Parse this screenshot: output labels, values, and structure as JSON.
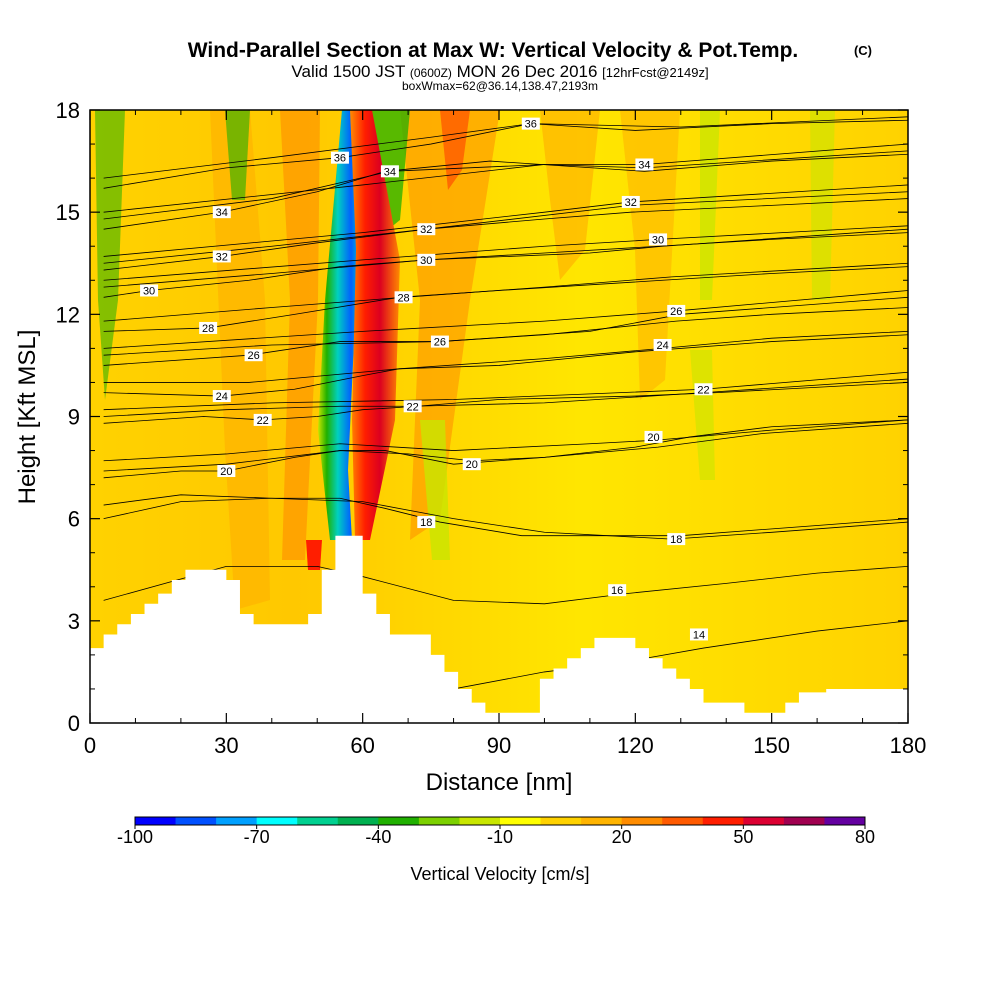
{
  "header": {
    "title": "Wind-Parallel Section at Max W: Vertical Velocity & Pot.Temp.",
    "copyright": "(C)",
    "subtitle_prefix": "Valid 1500 JST",
    "subtitle_utc": "(0600Z)",
    "subtitle_date": "MON 26 Dec 2016",
    "subtitle_fcst": "[12hrFcst@2149z]",
    "box_info": "boxWmax=62@36.14,138.47,2193m"
  },
  "chart_data": {
    "type": "heatmap",
    "title": "Wind-Parallel Section at Max W: Vertical Velocity & Pot.Temp.",
    "xlabel": "Distance [nm]",
    "ylabel": "Height [Kft MSL]",
    "xlim": [
      0,
      180
    ],
    "ylim": [
      0,
      18
    ],
    "x_ticks": [
      "0",
      "30",
      "60",
      "90",
      "120",
      "150",
      "180"
    ],
    "y_ticks": [
      "0",
      "3",
      "6",
      "9",
      "12",
      "15",
      "18"
    ],
    "colorbar": {
      "label": "Vertical Velocity [cm/s]",
      "tick_labels": [
        "-100",
        "-70",
        "-40",
        "-10",
        "20",
        "50",
        "80"
      ],
      "colors": [
        "#0000ff",
        "#0050ff",
        "#00a0ff",
        "#00ffff",
        "#00d090",
        "#00b050",
        "#20b000",
        "#7cd000",
        "#c8e600",
        "#ffff00",
        "#ffd200",
        "#ffb400",
        "#ff8c00",
        "#ff5a00",
        "#ff1e00",
        "#dc0032",
        "#a00050",
        "#6400a0"
      ]
    },
    "terrain_kft": [
      [
        0,
        2.2
      ],
      [
        3,
        2.6
      ],
      [
        6,
        2.9
      ],
      [
        9,
        3.2
      ],
      [
        12,
        3.5
      ],
      [
        15,
        3.8
      ],
      [
        18,
        4.2
      ],
      [
        21,
        4.5
      ],
      [
        27,
        4.5
      ],
      [
        30,
        4.2
      ],
      [
        33,
        3.2
      ],
      [
        36,
        2.9
      ],
      [
        45,
        2.9
      ],
      [
        48,
        3.2
      ],
      [
        51,
        4.5
      ],
      [
        54,
        5.5
      ],
      [
        57,
        5.5
      ],
      [
        60,
        3.8
      ],
      [
        63,
        3.2
      ],
      [
        66,
        2.6
      ],
      [
        72,
        2.6
      ],
      [
        75,
        2.0
      ],
      [
        78,
        1.5
      ],
      [
        81,
        1.0
      ],
      [
        84,
        0.6
      ],
      [
        87,
        0.3
      ],
      [
        90,
        0.3
      ],
      [
        96,
        0.3
      ],
      [
        99,
        1.3
      ],
      [
        102,
        1.6
      ],
      [
        105,
        1.9
      ],
      [
        108,
        2.2
      ],
      [
        111,
        2.5
      ],
      [
        117,
        2.5
      ],
      [
        120,
        2.2
      ],
      [
        123,
        1.9
      ],
      [
        126,
        1.6
      ],
      [
        129,
        1.3
      ],
      [
        132,
        1.0
      ],
      [
        135,
        0.6
      ],
      [
        138,
        0.6
      ],
      [
        141,
        0.6
      ],
      [
        144,
        0.3
      ],
      [
        150,
        0.3
      ],
      [
        153,
        0.6
      ],
      [
        156,
        0.9
      ],
      [
        162,
        1.0
      ],
      [
        180,
        1.0
      ]
    ],
    "theta_contours": [
      {
        "label": "14",
        "pts": [
          [
            3,
            1.6
          ],
          [
            30,
            1.9
          ],
          [
            50,
            1.8
          ],
          [
            60,
            1.5
          ],
          [
            80,
            1.0
          ],
          [
            100,
            1.5
          ],
          [
            118,
            1.8
          ],
          [
            135,
            2.2
          ],
          [
            160,
            2.7
          ],
          [
            180,
            3.0
          ]
        ],
        "label_at": [
          134,
          2.6
        ]
      },
      {
        "label": "16",
        "pts": [
          [
            3,
            3.6
          ],
          [
            30,
            4.6
          ],
          [
            50,
            4.6
          ],
          [
            60,
            4.3
          ],
          [
            80,
            3.6
          ],
          [
            100,
            3.5
          ],
          [
            118,
            3.8
          ],
          [
            140,
            4.1
          ],
          [
            160,
            4.4
          ],
          [
            180,
            4.6
          ]
        ],
        "label_at": [
          116,
          3.9
        ]
      },
      {
        "label": "18",
        "pts": [
          [
            3,
            6.0
          ],
          [
            20,
            6.5
          ],
          [
            40,
            6.6
          ],
          [
            55,
            6.6
          ],
          [
            65,
            6.3
          ],
          [
            77,
            5.9
          ],
          [
            95,
            5.5
          ],
          [
            115,
            5.5
          ],
          [
            130,
            5.5
          ],
          [
            160,
            5.8
          ],
          [
            180,
            6.0
          ]
        ],
        "label_at": [
          74,
          5.9
        ]
      },
      {
        "label": "18",
        "pts": [
          [
            3,
            6.4
          ],
          [
            20,
            6.7
          ],
          [
            40,
            6.6
          ],
          [
            60,
            6.5
          ],
          [
            80,
            6.0
          ],
          [
            100,
            5.6
          ],
          [
            128,
            5.4
          ],
          [
            150,
            5.6
          ],
          [
            180,
            5.9
          ]
        ],
        "label_at": [
          129,
          5.4
        ]
      },
      {
        "label": "20",
        "pts": [
          [
            3,
            7.2
          ],
          [
            20,
            7.4
          ],
          [
            30,
            7.4
          ],
          [
            45,
            7.8
          ],
          [
            55,
            8.0
          ],
          [
            65,
            8.0
          ],
          [
            80,
            7.6
          ],
          [
            100,
            7.8
          ],
          [
            120,
            8.1
          ],
          [
            132,
            8.4
          ],
          [
            150,
            8.7
          ],
          [
            180,
            8.9
          ]
        ],
        "label_at": [
          30,
          7.4
        ]
      },
      {
        "label": "20",
        "pts": [
          [
            3,
            7.4
          ],
          [
            30,
            7.6
          ],
          [
            55,
            8.0
          ],
          [
            70,
            7.9
          ],
          [
            84,
            7.7
          ],
          [
            100,
            7.8
          ],
          [
            125,
            8.1
          ],
          [
            148,
            8.5
          ],
          [
            180,
            8.8
          ]
        ],
        "label_at": [
          84,
          7.6
        ]
      },
      {
        "label": "20",
        "pts": [
          [
            3,
            7.7
          ],
          [
            30,
            7.9
          ],
          [
            55,
            8.2
          ],
          [
            80,
            8.0
          ],
          [
            110,
            8.2
          ],
          [
            124,
            8.3
          ],
          [
            150,
            8.6
          ],
          [
            180,
            8.9
          ]
        ],
        "label_at": [
          124,
          8.4
        ]
      },
      {
        "label": "22",
        "pts": [
          [
            3,
            8.8
          ],
          [
            25,
            9.0
          ],
          [
            38,
            8.9
          ],
          [
            50,
            9.0
          ],
          [
            60,
            9.2
          ],
          [
            72,
            9.3
          ],
          [
            90,
            9.5
          ],
          [
            120,
            9.6
          ],
          [
            138,
            9.7
          ],
          [
            180,
            10.0
          ]
        ],
        "label_at": [
          38,
          8.9
        ]
      },
      {
        "label": "22",
        "pts": [
          [
            3,
            9.0
          ],
          [
            30,
            9.2
          ],
          [
            55,
            9.3
          ],
          [
            71,
            9.3
          ],
          [
            100,
            9.4
          ],
          [
            135,
            9.7
          ],
          [
            180,
            10.1
          ]
        ],
        "label_at": [
          71,
          9.3
        ]
      },
      {
        "label": "22",
        "pts": [
          [
            3,
            9.2
          ],
          [
            40,
            9.4
          ],
          [
            80,
            9.5
          ],
          [
            135,
            9.8
          ],
          [
            180,
            10.3
          ]
        ],
        "label_at": [
          135,
          9.8
        ]
      },
      {
        "label": "24",
        "pts": [
          [
            3,
            9.7
          ],
          [
            29,
            9.6
          ],
          [
            45,
            9.8
          ],
          [
            60,
            10.2
          ],
          [
            68,
            10.4
          ],
          [
            90,
            10.5
          ],
          [
            120,
            10.9
          ],
          [
            150,
            11.2
          ],
          [
            180,
            11.4
          ]
        ],
        "label_at": [
          29,
          9.6
        ]
      },
      {
        "label": "24",
        "pts": [
          [
            3,
            10.0
          ],
          [
            35,
            10.0
          ],
          [
            68,
            10.4
          ],
          [
            100,
            10.7
          ],
          [
            126,
            11.0
          ],
          [
            150,
            11.3
          ],
          [
            180,
            11.5
          ]
        ],
        "label_at": [
          126,
          11.1
        ]
      },
      {
        "label": "26",
        "pts": [
          [
            3,
            10.5
          ],
          [
            35,
            10.8
          ],
          [
            55,
            11.2
          ],
          [
            77,
            11.2
          ],
          [
            100,
            11.4
          ],
          [
            129,
            11.8
          ],
          [
            150,
            12.0
          ],
          [
            180,
            12.2
          ]
        ],
        "label_at": [
          36,
          10.8
        ]
      },
      {
        "label": "26",
        "pts": [
          [
            3,
            10.8
          ],
          [
            40,
            11.1
          ],
          [
            77,
            11.2
          ],
          [
            110,
            11.5
          ],
          [
            130,
            12.0
          ],
          [
            180,
            12.5
          ]
        ],
        "label_at": [
          77,
          11.2
        ]
      },
      {
        "label": "26",
        "pts": [
          [
            3,
            11.0
          ],
          [
            60,
            11.5
          ],
          [
            100,
            11.8
          ],
          [
            129,
            12.1
          ],
          [
            180,
            12.7
          ]
        ],
        "label_at": [
          129,
          12.1
        ]
      },
      {
        "label": "28",
        "pts": [
          [
            3,
            11.5
          ],
          [
            26,
            11.6
          ],
          [
            45,
            12.0
          ],
          [
            68,
            12.5
          ],
          [
            90,
            12.7
          ],
          [
            126,
            13.0
          ],
          [
            150,
            13.2
          ],
          [
            180,
            13.4
          ]
        ],
        "label_at": [
          26,
          11.6
        ]
      },
      {
        "label": "28",
        "pts": [
          [
            3,
            11.8
          ],
          [
            40,
            12.2
          ],
          [
            69,
            12.5
          ],
          [
            100,
            12.8
          ],
          [
            128,
            13.1
          ],
          [
            180,
            13.5
          ]
        ],
        "label_at": [
          69,
          12.5
        ]
      },
      {
        "label": "30",
        "pts": [
          [
            3,
            12.5
          ],
          [
            13,
            12.7
          ],
          [
            35,
            13.0
          ],
          [
            55,
            13.4
          ],
          [
            74,
            13.6
          ],
          [
            100,
            13.8
          ],
          [
            125,
            14.0
          ],
          [
            150,
            14.2
          ],
          [
            180,
            14.4
          ]
        ],
        "label_at": [
          13,
          12.7
        ]
      },
      {
        "label": "30",
        "pts": [
          [
            3,
            12.8
          ],
          [
            40,
            13.2
          ],
          [
            74,
            13.6
          ],
          [
            110,
            13.8
          ],
          [
            126,
            14.0
          ],
          [
            180,
            14.5
          ]
        ],
        "label_at": [
          74,
          13.6
        ]
      },
      {
        "label": "30",
        "pts": [
          [
            3,
            13.0
          ],
          [
            60,
            13.6
          ],
          [
            100,
            14.0
          ],
          [
            125,
            14.2
          ],
          [
            180,
            14.6
          ]
        ],
        "label_at": [
          125,
          14.2
        ]
      },
      {
        "label": "32",
        "pts": [
          [
            3,
            13.3
          ],
          [
            29,
            13.7
          ],
          [
            50,
            14.1
          ],
          [
            74,
            14.5
          ],
          [
            100,
            14.8
          ],
          [
            119,
            15.0
          ],
          [
            150,
            15.2
          ],
          [
            180,
            15.4
          ]
        ],
        "label_at": [
          29,
          13.7
        ]
      },
      {
        "label": "32",
        "pts": [
          [
            3,
            13.5
          ],
          [
            40,
            14.0
          ],
          [
            74,
            14.5
          ],
          [
            119,
            15.2
          ],
          [
            180,
            15.6
          ]
        ],
        "label_at": [
          74,
          14.5
        ]
      },
      {
        "label": "32",
        "pts": [
          [
            3,
            13.7
          ],
          [
            60,
            14.4
          ],
          [
            100,
            15.0
          ],
          [
            119,
            15.3
          ],
          [
            180,
            15.8
          ]
        ],
        "label_at": [
          119,
          15.3
        ]
      },
      {
        "label": "34",
        "pts": [
          [
            3,
            14.5
          ],
          [
            29,
            15.0
          ],
          [
            50,
            15.6
          ],
          [
            65,
            16.2
          ],
          [
            88,
            16.5
          ],
          [
            122,
            16.2
          ],
          [
            150,
            16.5
          ],
          [
            180,
            16.7
          ]
        ],
        "label_at": [
          29,
          15.0
        ]
      },
      {
        "label": "34",
        "pts": [
          [
            3,
            14.8
          ],
          [
            40,
            15.4
          ],
          [
            66,
            16.2
          ],
          [
            100,
            16.4
          ],
          [
            122,
            16.3
          ],
          [
            180,
            16.8
          ]
        ],
        "label_at": [
          66,
          16.2
        ]
      },
      {
        "label": "34",
        "pts": [
          [
            3,
            15.0
          ],
          [
            60,
            15.8
          ],
          [
            100,
            16.4
          ],
          [
            122,
            16.4
          ],
          [
            180,
            17.0
          ]
        ],
        "label_at": [
          122,
          16.4
        ]
      },
      {
        "label": "36",
        "pts": [
          [
            3,
            15.7
          ],
          [
            30,
            16.3
          ],
          [
            55,
            16.6
          ],
          [
            75,
            17.0
          ],
          [
            97,
            17.6
          ],
          [
            120,
            17.4
          ],
          [
            150,
            17.6
          ],
          [
            180,
            17.7
          ]
        ],
        "label_at": [
          55,
          16.6
        ]
      },
      {
        "label": "36",
        "pts": [
          [
            3,
            16.0
          ],
          [
            40,
            16.6
          ],
          [
            75,
            17.2
          ],
          [
            97,
            17.6
          ],
          [
            130,
            17.5
          ],
          [
            180,
            17.8
          ]
        ],
        "label_at": [
          97,
          17.6
        ]
      }
    ]
  }
}
